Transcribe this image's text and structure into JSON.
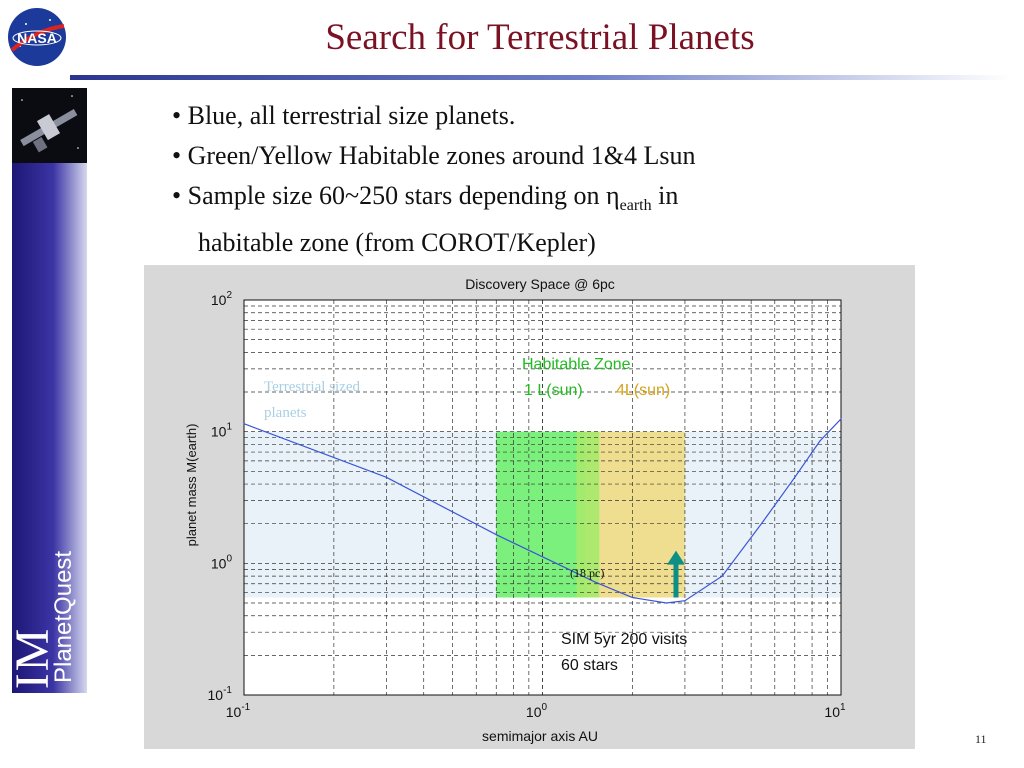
{
  "logo": {
    "text": "NASA"
  },
  "slide": {
    "title": "Search for Terrestrial Planets",
    "page_number": "11"
  },
  "bullets": {
    "b1": "• Blue, all terrestrial  size planets.",
    "b2": "• Green/Yellow Habitable zones around 1&4 Lsun",
    "b3_pre": "• Sample size 60~250 stars depending on η",
    "b3_sub": "earth",
    "b3_post": " in",
    "b3_cont": "habitable zone (from COROT/Kepler)"
  },
  "branding": {
    "product": "PlanetQuest",
    "program": "SIM"
  },
  "colors": {
    "title": "#7a1224",
    "terrestrial_band": "#e8f2f8",
    "hz_1lsun": "#7cf07c",
    "hz_4lsun": "#f0de90",
    "curve": "#3a55d8",
    "arrow": "#0d8f86"
  },
  "chart_data": {
    "type": "line",
    "title": "Discovery Space @ 6pc",
    "xlabel": "semimajor axis AU",
    "ylabel": "planet mass M(earth)",
    "x_scale": "log",
    "y_scale": "log",
    "xlim": [
      0.1,
      10
    ],
    "ylim": [
      0.1,
      100
    ],
    "grid": true,
    "x_ticks": [
      {
        "value": 0.1,
        "base": "10",
        "exp": "-1"
      },
      {
        "value": 1,
        "base": "10",
        "exp": "0"
      },
      {
        "value": 10,
        "base": "10",
        "exp": "1"
      }
    ],
    "y_ticks": [
      {
        "value": 0.1,
        "base": "10",
        "exp": "-1"
      },
      {
        "value": 1,
        "base": "10",
        "exp": "0"
      },
      {
        "value": 10,
        "base": "10",
        "exp": "1"
      },
      {
        "value": 100,
        "base": "10",
        "exp": "2"
      }
    ],
    "regions": [
      {
        "name": "Terrestrial sized planets",
        "x": [
          0.1,
          10
        ],
        "y": [
          0.55,
          10
        ]
      },
      {
        "name": "1 L(sun)",
        "x": [
          0.7,
          1.4
        ],
        "y": [
          0.55,
          10
        ]
      },
      {
        "name": "4L(sun)",
        "x": [
          1.4,
          3.0
        ],
        "y": [
          0.55,
          10
        ]
      },
      {
        "name": "overlap",
        "x": [
          1.3,
          1.55
        ],
        "y": [
          0.55,
          10
        ]
      }
    ],
    "series": [
      {
        "x": [
          0.1,
          0.3,
          0.7,
          1.2,
          1.5,
          2.0,
          2.6,
          3.0,
          4.0,
          5.5,
          7.0,
          8.5,
          10.0
        ],
        "y": [
          11.5,
          4.5,
          1.65,
          0.92,
          0.72,
          0.55,
          0.5,
          0.52,
          0.8,
          2.1,
          4.5,
          8.5,
          12.5
        ]
      }
    ],
    "arrow": {
      "x": 2.8,
      "y_from": 0.55,
      "y_to": 1.25
    },
    "annotations": {
      "terrestrial": [
        "Terrestrial sized",
        "planets"
      ],
      "hz_title": "Habitable Zone",
      "hz_1l": "1 L(sun)",
      "hz_4l": "4L(sun)",
      "distance": "(18 pc)",
      "sim_line1": "SIM 5yr 200 visits",
      "sim_line2": "60 stars"
    }
  }
}
